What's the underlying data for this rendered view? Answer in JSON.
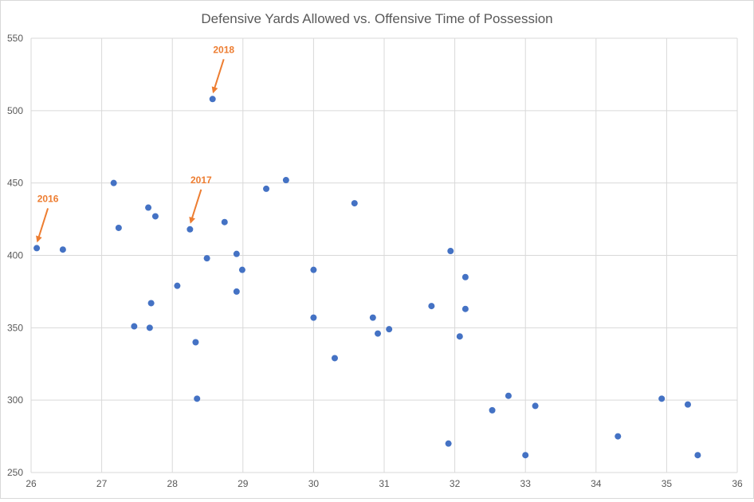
{
  "chart_data": {
    "type": "scatter",
    "title": "Defensive Yards Allowed vs. Offensive Time of Possession",
    "xlabel": "",
    "ylabel": "",
    "xlim": [
      26,
      36
    ],
    "ylim": [
      250,
      550
    ],
    "x_ticks": [
      26,
      27,
      28,
      29,
      30,
      31,
      32,
      33,
      34,
      35,
      36
    ],
    "y_ticks": [
      250,
      300,
      350,
      400,
      450,
      500,
      550
    ],
    "grid": true,
    "legend": "none",
    "colors": {
      "points": "#4472C4",
      "annotations": "#ED7D31",
      "grid": "#D9D9D9",
      "text": "#595959"
    },
    "points": [
      [
        26.08,
        405
      ],
      [
        26.45,
        404
      ],
      [
        27.17,
        450
      ],
      [
        27.24,
        419
      ],
      [
        27.66,
        433
      ],
      [
        27.76,
        427
      ],
      [
        27.46,
        351
      ],
      [
        27.68,
        350
      ],
      [
        27.7,
        367
      ],
      [
        28.07,
        379
      ],
      [
        28.25,
        418
      ],
      [
        28.57,
        508
      ],
      [
        28.33,
        340
      ],
      [
        28.35,
        301
      ],
      [
        28.49,
        398
      ],
      [
        28.74,
        423
      ],
      [
        28.91,
        401
      ],
      [
        28.91,
        375
      ],
      [
        28.99,
        390
      ],
      [
        29.33,
        446
      ],
      [
        29.61,
        452
      ],
      [
        30.0,
        390
      ],
      [
        30.0,
        357
      ],
      [
        30.3,
        329
      ],
      [
        30.58,
        436
      ],
      [
        30.84,
        357
      ],
      [
        30.91,
        346
      ],
      [
        31.07,
        349
      ],
      [
        31.67,
        365
      ],
      [
        31.94,
        403
      ],
      [
        31.91,
        270
      ],
      [
        32.15,
        385
      ],
      [
        32.15,
        363
      ],
      [
        32.07,
        344
      ],
      [
        32.53,
        293
      ],
      [
        32.76,
        303
      ],
      [
        33.0,
        262
      ],
      [
        33.14,
        296
      ],
      [
        34.31,
        275
      ],
      [
        34.93,
        301
      ],
      [
        35.3,
        297
      ],
      [
        35.44,
        262
      ]
    ],
    "annotations": [
      {
        "text": "2016",
        "x": 26.08,
        "y": 405
      },
      {
        "text": "2017",
        "x": 28.25,
        "y": 418
      },
      {
        "text": "2018",
        "x": 28.57,
        "y": 508
      }
    ]
  }
}
